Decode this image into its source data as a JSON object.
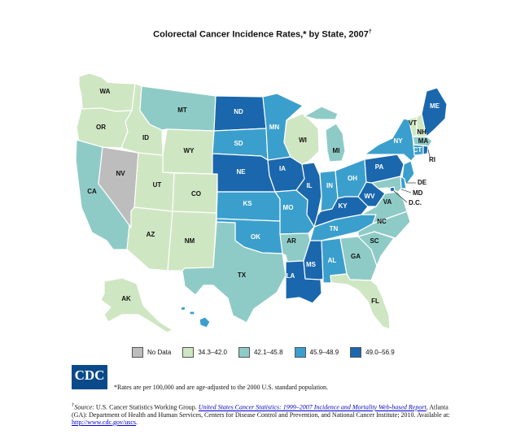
{
  "title": "Colorectal Cancer Incidence Rates,* by State, 2007",
  "title_mark": "†",
  "colors": {
    "c0": "#bdbdbd",
    "c1": "#cfe6c2",
    "c2": "#8fcbc6",
    "c3": "#3b9fcd",
    "c4": "#1a67ad"
  },
  "legend": [
    {
      "label": "No Data",
      "class": "c0"
    },
    {
      "label": "34.3–42.0",
      "class": "c1"
    },
    {
      "label": "42.1–45.8",
      "class": "c2"
    },
    {
      "label": "45.9–48.9",
      "class": "c3"
    },
    {
      "label": "49.0–56.9",
      "class": "c4"
    }
  ],
  "states": {
    "WA": "c1",
    "OR": "c1",
    "CA": "c2",
    "NV": "c0",
    "ID": "c1",
    "MT": "c2",
    "WY": "c1",
    "UT": "c1",
    "CO": "c1",
    "AZ": "c1",
    "NM": "c1",
    "ND": "c4",
    "SD": "c3",
    "NE": "c4",
    "KS": "c3",
    "OK": "c3",
    "TX": "c2",
    "MN": "c3",
    "IA": "c4",
    "MO": "c3",
    "AR": "c2",
    "LA": "c4",
    "WI": "c1",
    "IL": "c4",
    "MS": "c4",
    "MI": "c2",
    "IN": "c3",
    "OH": "c3",
    "KY": "c4",
    "TN": "c3",
    "AL": "c3",
    "GA": "c2",
    "FL": "c1",
    "SC": "c2",
    "NC": "c2",
    "VA": "c2",
    "WV": "c4",
    "PA": "c4",
    "NY": "c3",
    "VT": "c1",
    "NH": "c1",
    "ME": "c4",
    "MA": "c2",
    "RI": "c4",
    "CT": "c3",
    "NJ": "c3",
    "DE": "c3",
    "MD": "c2",
    "DC": "c4",
    "AK": "c1",
    "HI": "c3"
  },
  "callout_labels": {
    "DE": "DE",
    "MD": "MD",
    "DC": "D.C.",
    "RI": "RI"
  },
  "logo_text": "CDC",
  "footnote": "*Rates are per 100,000 and are age-adjusted to the 2000 U.S. standard population.",
  "source": {
    "mark": "†",
    "prefix": "Source:",
    "text1": " U.S. Cancer Statistics Working Group.",
    "link_title": "United States Cancer Statistics: 1999–2007 Incidence and Mortality Web-based Report",
    "text2": ", Atlanta (GA): Department of Health and Human Services, Centers for Disease Control and Prevention, and National Cancer Institute; 2010. Available at:",
    "url": "http://www.cdc.gov/uscs"
  }
}
